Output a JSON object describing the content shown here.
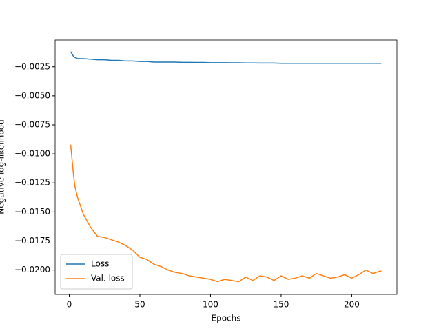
{
  "chart_data": {
    "type": "line",
    "xlabel": "Epochs",
    "ylabel": "Negative log-likelihood",
    "x": [
      1,
      2,
      3,
      4,
      6,
      8,
      10,
      15,
      20,
      25,
      30,
      35,
      40,
      45,
      50,
      55,
      60,
      65,
      70,
      75,
      80,
      85,
      90,
      95,
      100,
      105,
      110,
      115,
      120,
      125,
      130,
      135,
      140,
      145,
      150,
      155,
      160,
      165,
      170,
      175,
      180,
      185,
      190,
      195,
      200,
      205,
      210,
      215,
      220,
      221
    ],
    "series": [
      {
        "name": "Loss",
        "color": "#1f77b4",
        "values": [
          -0.0012,
          -0.0014,
          -0.0016,
          -0.0017,
          -0.0018,
          -0.0018,
          -0.0018,
          -0.00185,
          -0.0019,
          -0.0019,
          -0.00195,
          -0.00195,
          -0.002,
          -0.002,
          -0.00205,
          -0.00205,
          -0.0021,
          -0.0021,
          -0.0021,
          -0.0021,
          -0.00212,
          -0.00212,
          -0.00213,
          -0.00213,
          -0.00215,
          -0.00215,
          -0.00215,
          -0.00216,
          -0.00216,
          -0.00217,
          -0.00217,
          -0.00218,
          -0.00218,
          -0.00218,
          -0.0022,
          -0.0022,
          -0.0022,
          -0.0022,
          -0.0022,
          -0.0022,
          -0.0022,
          -0.0022,
          -0.0022,
          -0.0022,
          -0.0022,
          -0.0022,
          -0.0022,
          -0.0022,
          -0.0022,
          -0.0022
        ]
      },
      {
        "name": "Val. loss",
        "color": "#ff7f0e",
        "values": [
          -0.0092,
          -0.0105,
          -0.0118,
          -0.0128,
          -0.0138,
          -0.0145,
          -0.0152,
          -0.0163,
          -0.0171,
          -0.0172,
          -0.0174,
          -0.0176,
          -0.0179,
          -0.0183,
          -0.0189,
          -0.0191,
          -0.0195,
          -0.0197,
          -0.02,
          -0.0202,
          -0.0203,
          -0.0205,
          -0.0206,
          -0.0207,
          -0.0208,
          -0.021,
          -0.0208,
          -0.0209,
          -0.021,
          -0.0206,
          -0.0209,
          -0.0205,
          -0.0206,
          -0.0209,
          -0.0205,
          -0.0208,
          -0.0207,
          -0.0205,
          -0.0207,
          -0.0203,
          -0.0205,
          -0.0207,
          -0.0206,
          -0.0204,
          -0.0207,
          -0.0204,
          -0.02,
          -0.0203,
          -0.0201,
          -0.0201
        ]
      }
    ],
    "xlim": [
      -10,
      232
    ],
    "ylim": [
      -0.0221,
      -0.0002
    ],
    "xticks": [
      0,
      50,
      100,
      150,
      200
    ],
    "yticks": [
      {
        "value": -0.0025,
        "label": "−0.0025"
      },
      {
        "value": -0.005,
        "label": "−0.0050"
      },
      {
        "value": -0.0075,
        "label": "−0.0075"
      },
      {
        "value": -0.01,
        "label": "−0.0100"
      },
      {
        "value": -0.0125,
        "label": "−0.0125"
      },
      {
        "value": -0.015,
        "label": "−0.0150"
      },
      {
        "value": -0.0175,
        "label": "−0.0175"
      },
      {
        "value": -0.02,
        "label": "−0.0200"
      }
    ],
    "legend": "lower left"
  }
}
